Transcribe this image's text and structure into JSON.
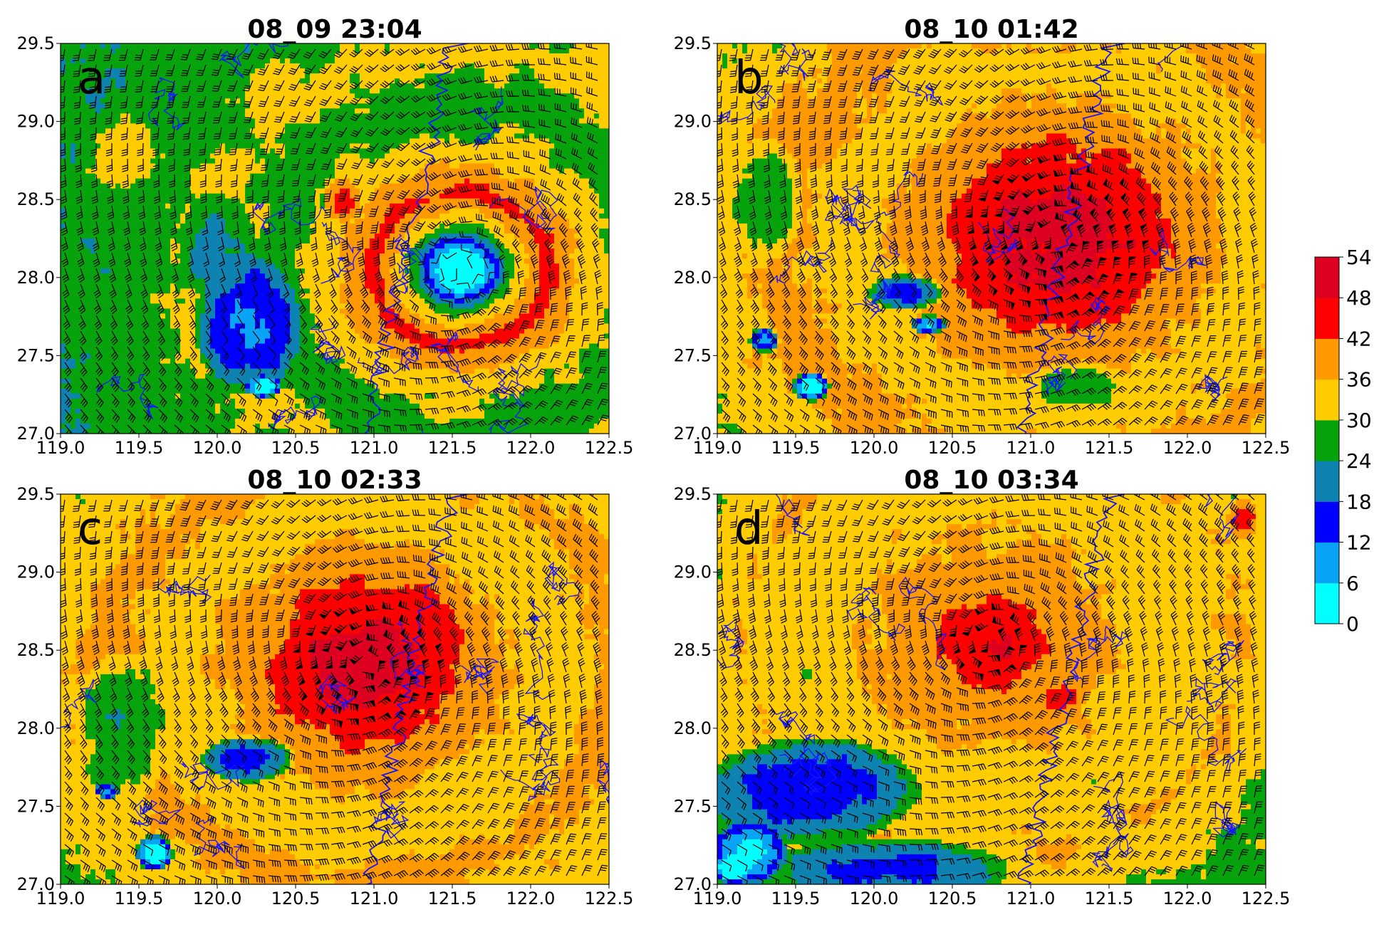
{
  "chart_data": {
    "type": "heatmap",
    "variable_note": "filled contour with wind barbs",
    "x_ticks": [
      119.0,
      119.5,
      120.0,
      120.5,
      121.0,
      121.5,
      122.0,
      122.5
    ],
    "y_ticks": [
      27.0,
      27.5,
      28.0,
      28.5,
      29.0,
      29.5
    ],
    "xlim": [
      119.0,
      122.5
    ],
    "ylim": [
      27.0,
      29.5
    ],
    "colorbar": {
      "levels": [
        0,
        6,
        12,
        18,
        24,
        30,
        36,
        42,
        48,
        54
      ],
      "colors": [
        "#00ffff",
        "#0aa4f7",
        "#0000ff",
        "#0e82b0",
        "#07a30c",
        "#ffcc00",
        "#ff9900",
        "#ff0000",
        "#dd0020"
      ]
    },
    "panels": [
      {
        "letter": "a",
        "title": "08_09 23:04",
        "center": [
          121.55,
          28.05
        ],
        "rings": [
          {
            "r": 0.12,
            "value": 0
          },
          {
            "r": 0.3,
            "value": 27
          },
          {
            "r": 0.55,
            "value": 44
          },
          {
            "r": 0.85,
            "value": 33
          },
          {
            "r": 1.2,
            "value": 27
          },
          {
            "r": 1.6,
            "value": 32
          },
          {
            "r": 2.1,
            "value": 27
          },
          {
            "r": 2.6,
            "value": 25
          }
        ],
        "blobs": [
          {
            "x": 120.2,
            "y": 27.7,
            "rx": 0.35,
            "ry": 0.45,
            "value": 11
          },
          {
            "x": 120.0,
            "y": 28.2,
            "rx": 0.25,
            "ry": 0.35,
            "value": 21
          },
          {
            "x": 120.3,
            "y": 27.3,
            "rx": 0.12,
            "ry": 0.07,
            "value": 0
          },
          {
            "x": 120.8,
            "y": 28.5,
            "rx": 0.12,
            "ry": 0.15,
            "value": 44
          },
          {
            "x": 119.4,
            "y": 28.8,
            "rx": 0.3,
            "ry": 0.3,
            "value": 32
          }
        ]
      },
      {
        "letter": "b",
        "title": "08_10 01:42",
        "center": [
          121.15,
          28.25
        ],
        "rings": [
          {
            "r": 0.25,
            "value": 50
          },
          {
            "r": 0.5,
            "value": 46
          },
          {
            "r": 0.9,
            "value": 38
          },
          {
            "r": 1.3,
            "value": 33
          },
          {
            "r": 1.8,
            "value": 38
          },
          {
            "r": 2.3,
            "value": 32
          },
          {
            "r": 2.9,
            "value": 27
          }
        ],
        "blobs": [
          {
            "x": 119.6,
            "y": 27.3,
            "rx": 0.12,
            "ry": 0.1,
            "value": 0
          },
          {
            "x": 120.2,
            "y": 27.9,
            "rx": 0.25,
            "ry": 0.12,
            "value": 15
          },
          {
            "x": 120.35,
            "y": 27.7,
            "rx": 0.12,
            "ry": 0.06,
            "value": 5
          },
          {
            "x": 119.3,
            "y": 27.6,
            "rx": 0.1,
            "ry": 0.08,
            "value": 10
          },
          {
            "x": 119.3,
            "y": 28.5,
            "rx": 0.25,
            "ry": 0.4,
            "value": 26
          },
          {
            "x": 121.3,
            "y": 27.3,
            "rx": 0.4,
            "ry": 0.15,
            "value": 27
          }
        ]
      },
      {
        "letter": "c",
        "title": "08_10 02:33",
        "center": [
          120.95,
          28.4
        ],
        "rings": [
          {
            "r": 0.22,
            "value": 50
          },
          {
            "r": 0.45,
            "value": 45
          },
          {
            "r": 0.8,
            "value": 38
          },
          {
            "r": 1.2,
            "value": 32
          },
          {
            "r": 1.6,
            "value": 38
          },
          {
            "r": 2.1,
            "value": 32
          },
          {
            "r": 2.7,
            "value": 27
          }
        ],
        "blobs": [
          {
            "x": 119.6,
            "y": 27.2,
            "rx": 0.12,
            "ry": 0.12,
            "value": 0
          },
          {
            "x": 119.3,
            "y": 27.6,
            "rx": 0.08,
            "ry": 0.05,
            "value": 0
          },
          {
            "x": 120.2,
            "y": 27.8,
            "rx": 0.3,
            "ry": 0.15,
            "value": 15
          },
          {
            "x": 119.4,
            "y": 28.0,
            "rx": 0.3,
            "ry": 0.5,
            "value": 25
          },
          {
            "x": 121.2,
            "y": 28.1,
            "rx": 0.25,
            "ry": 0.15,
            "value": 44
          }
        ]
      },
      {
        "letter": "d",
        "title": "08_10 03:34",
        "center": [
          120.75,
          28.55
        ],
        "rings": [
          {
            "r": 0.2,
            "value": 46
          },
          {
            "r": 0.4,
            "value": 40
          },
          {
            "r": 0.8,
            "value": 36
          },
          {
            "r": 1.2,
            "value": 32
          },
          {
            "r": 1.6,
            "value": 36
          },
          {
            "r": 2.1,
            "value": 29
          },
          {
            "r": 2.7,
            "value": 26
          }
        ],
        "blobs": [
          {
            "x": 119.6,
            "y": 27.6,
            "rx": 0.7,
            "ry": 0.35,
            "value": 14
          },
          {
            "x": 119.2,
            "y": 27.2,
            "rx": 0.25,
            "ry": 0.2,
            "value": 3
          },
          {
            "x": 119.1,
            "y": 27.1,
            "rx": 0.12,
            "ry": 0.1,
            "value": 0
          },
          {
            "x": 120.1,
            "y": 27.1,
            "rx": 0.8,
            "ry": 0.2,
            "value": 16
          },
          {
            "x": 121.2,
            "y": 28.2,
            "rx": 0.15,
            "ry": 0.1,
            "value": 44
          },
          {
            "x": 122.35,
            "y": 29.35,
            "rx": 0.1,
            "ry": 0.15,
            "value": 44
          }
        ]
      }
    ]
  }
}
